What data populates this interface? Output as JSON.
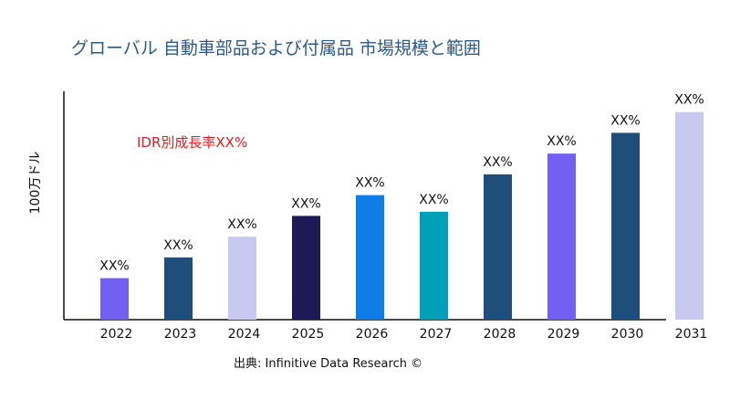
{
  "title": "グローバル 自動車部品および付属品 市場規模と範囲",
  "chart_data": {
    "type": "bar",
    "title": "グローバル 自動車部品および付属品 市場規模と範囲",
    "ylabel": "100万ドル",
    "xlabel": "",
    "categories": [
      "2022",
      "2023",
      "2024",
      "2025",
      "2026",
      "2027",
      "2028",
      "2029",
      "2030",
      "2031"
    ],
    "values": [
      2.0,
      3.0,
      4.0,
      5.0,
      6.0,
      5.2,
      7.0,
      8.0,
      9.0,
      10.0
    ],
    "data_labels": [
      "XX%",
      "XX%",
      "XX%",
      "XX%",
      "XX%",
      "XX%",
      "XX%",
      "XX%",
      "XX%",
      "XX%"
    ],
    "colors": [
      "#7360f2",
      "#1f4e7c",
      "#c8c8f0",
      "#1e1a55",
      "#0e7de8",
      "#00a0b8",
      "#1f4e7c",
      "#7360f2",
      "#1f4e7c",
      "#c8c8f0"
    ],
    "ylim": [
      0,
      11
    ],
    "grid": false,
    "annotation": "IDR別成長率XX%"
  },
  "source": "出典: Infinitive Data Research ©"
}
